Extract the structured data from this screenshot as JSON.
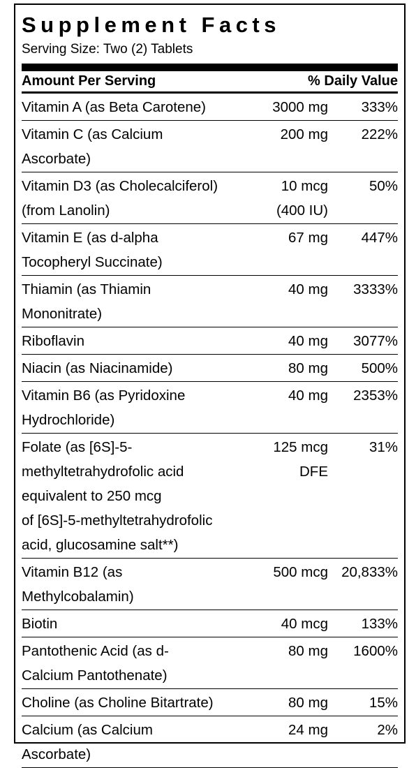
{
  "title": "Supplement Facts",
  "serving_size": "Serving Size: Two (2) Tablets",
  "header": {
    "amount": "Amount Per Serving",
    "daily_value": "% Daily Value"
  },
  "nutrients": [
    {
      "name_lines": [
        "Vitamin A (as Beta Carotene)"
      ],
      "amount_lines": [
        "3000 mg"
      ],
      "dv": "333%"
    },
    {
      "name_lines": [
        "Vitamin C (as Calcium",
        "Ascorbate)"
      ],
      "amount_lines": [
        "200 mg"
      ],
      "dv": "222%"
    },
    {
      "name_lines": [
        "Vitamin D3 (as Cholecalciferol)",
        "(from Lanolin)"
      ],
      "amount_lines": [
        "10 mcg",
        "(400 IU)"
      ],
      "dv": "50%"
    },
    {
      "name_lines": [
        "Vitamin E (as d-alpha",
        "Tocopheryl Succinate)"
      ],
      "amount_lines": [
        "67 mg"
      ],
      "dv": "447%"
    },
    {
      "name_lines": [
        "Thiamin (as Thiamin",
        "Mononitrate)"
      ],
      "amount_lines": [
        "40 mg"
      ],
      "dv": "3333%"
    },
    {
      "name_lines": [
        "Riboflavin"
      ],
      "amount_lines": [
        "40 mg"
      ],
      "dv": "3077%"
    },
    {
      "name_lines": [
        "Niacin (as Niacinamide)"
      ],
      "amount_lines": [
        "80 mg"
      ],
      "dv": "500%"
    },
    {
      "name_lines": [
        "Vitamin B6 (as Pyridoxine",
        "Hydrochloride)"
      ],
      "amount_lines": [
        "40 mg"
      ],
      "dv": "2353%"
    },
    {
      "name_lines": [
        "Folate (as [6S]-5-",
        "methyltetrahydrofolic acid",
        "equivalent to 250 mcg",
        "of [6S]-5-methyltetrahydrofolic",
        "acid, glucosamine salt**)"
      ],
      "amount_lines": [
        "125 mcg",
        "DFE"
      ],
      "dv": "31%"
    },
    {
      "name_lines": [
        "Vitamin B12 (as",
        "Methylcobalamin)"
      ],
      "amount_lines": [
        "500 mcg"
      ],
      "dv": "20,833%"
    },
    {
      "name_lines": [
        "Biotin"
      ],
      "amount_lines": [
        "40 mcg"
      ],
      "dv": "133%"
    },
    {
      "name_lines": [
        "Pantothenic Acid (as d-",
        "Calcium Pantothenate)"
      ],
      "amount_lines": [
        "80 mg"
      ],
      "dv": "1600%"
    },
    {
      "name_lines": [
        "Choline (as Choline Bitartrate)"
      ],
      "amount_lines": [
        "80 mg"
      ],
      "dv": "15%"
    },
    {
      "name_lines": [
        "Calcium (as Calcium",
        "Ascorbate)"
      ],
      "amount_lines": [
        "24 mg"
      ],
      "dv": "2%"
    }
  ]
}
